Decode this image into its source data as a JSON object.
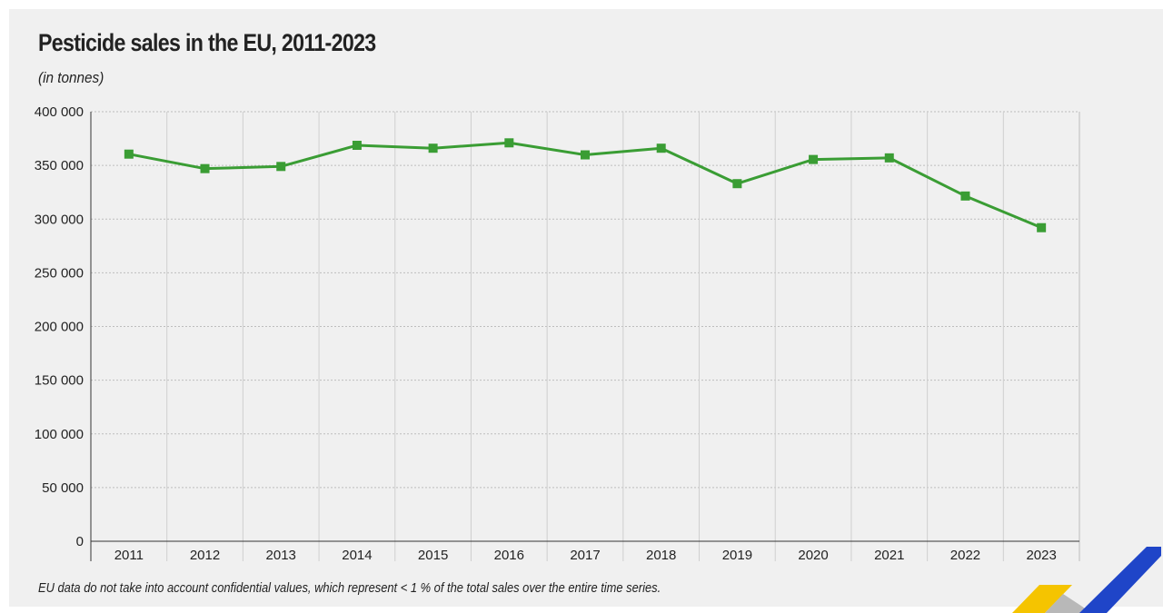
{
  "title": "Pesticide sales in the EU, 2011-2023",
  "subtitle": "(in tonnes)",
  "footnote": "EU data do not take into account confidential values, which represent < 1 % of the total sales over the entire time series.",
  "chart_data": {
    "type": "line",
    "x": [
      "2011",
      "2012",
      "2013",
      "2014",
      "2015",
      "2016",
      "2017",
      "2018",
      "2019",
      "2020",
      "2021",
      "2022",
      "2023"
    ],
    "series": [
      {
        "values": [
          360500,
          347000,
          349000,
          368700,
          366000,
          371000,
          359800,
          366000,
          333000,
          355500,
          357000,
          321500,
          292000
        ]
      }
    ],
    "yticks": [
      0,
      50000,
      100000,
      150000,
      200000,
      250000,
      300000,
      350000,
      400000
    ],
    "ytick_labels": [
      "0",
      "50 000",
      "100 000",
      "150 000",
      "200 000",
      "250 000",
      "300 000",
      "350 000",
      "400 000"
    ],
    "ylim": [
      0,
      400000
    ],
    "grid": true,
    "colors": {
      "line": "#3a9d34",
      "grid": "#bdbdbd",
      "axis": "#333333"
    }
  }
}
